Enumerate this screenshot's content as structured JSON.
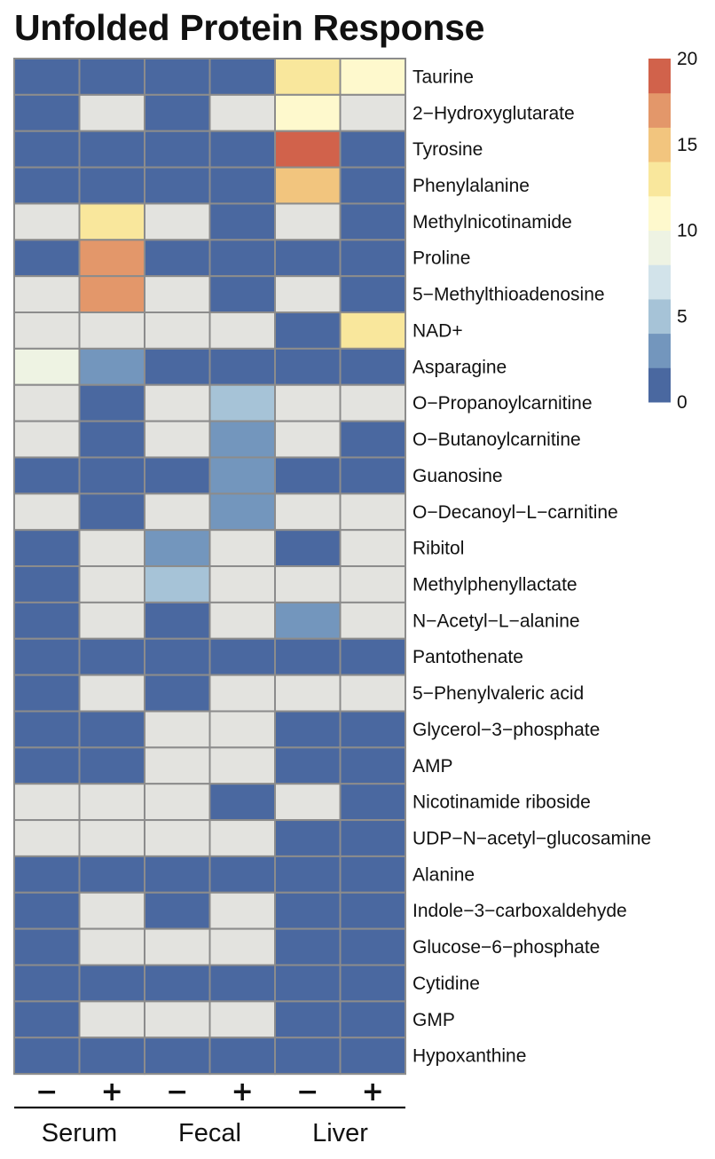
{
  "chart_data": {
    "type": "heatmap",
    "title": "Unfolded Protein Response",
    "rows": [
      "Taurine",
      "2−Hydroxyglutarate",
      "Tyrosine",
      "Phenylalanine",
      "Methylnicotinamide",
      "Proline",
      "5−Methylthioadenosine",
      "NAD+",
      "Asparagine",
      "O−Propanoylcarnitine",
      "O−Butanoylcarnitine",
      "Guanosine",
      "O−Decanoyl−L−carnitine",
      "Ribitol",
      "Methylphenyllactate",
      "N−Acetyl−L−alanine",
      "Pantothenate",
      "5−Phenylvaleric acid",
      "Glycerol−3−phosphate",
      "AMP",
      "Nicotinamide riboside",
      "UDP−N−acetyl−glucosamine",
      "Alanine",
      "Indole−3−carboxaldehyde",
      "Glucose−6−phosphate",
      "Cytidine",
      "GMP",
      "Hypoxanthine"
    ],
    "columns": [
      "−",
      "+",
      "−",
      "+",
      "−",
      "+"
    ],
    "groups": [
      {
        "label": "Serum",
        "columns": [
          0,
          1
        ]
      },
      {
        "label": "Fecal",
        "columns": [
          2,
          3
        ]
      },
      {
        "label": "Liver",
        "columns": [
          4,
          5
        ]
      }
    ],
    "values": [
      [
        1,
        1,
        1,
        1,
        13,
        11
      ],
      [
        1,
        null,
        1,
        null,
        11,
        null
      ],
      [
        1,
        1,
        1,
        1,
        19,
        1
      ],
      [
        1,
        1,
        1,
        1,
        15,
        1
      ],
      [
        null,
        13,
        null,
        1,
        null,
        1
      ],
      [
        1,
        17,
        1,
        1,
        1,
        1
      ],
      [
        null,
        17,
        null,
        1,
        null,
        1
      ],
      [
        null,
        null,
        null,
        null,
        1,
        13
      ],
      [
        9,
        3,
        1,
        1,
        1,
        1
      ],
      [
        null,
        1,
        null,
        5,
        null,
        null
      ],
      [
        null,
        1,
        null,
        3,
        null,
        1
      ],
      [
        1,
        1,
        1,
        3,
        1,
        1
      ],
      [
        null,
        1,
        null,
        3,
        null,
        null
      ],
      [
        1,
        null,
        3,
        null,
        1,
        null
      ],
      [
        1,
        null,
        5,
        null,
        null,
        null
      ],
      [
        1,
        null,
        1,
        null,
        3,
        null
      ],
      [
        1,
        1,
        1,
        1,
        1,
        1
      ],
      [
        1,
        null,
        1,
        null,
        null,
        null
      ],
      [
        1,
        1,
        null,
        null,
        1,
        1
      ],
      [
        1,
        1,
        null,
        null,
        1,
        1
      ],
      [
        null,
        null,
        null,
        1,
        null,
        1
      ],
      [
        null,
        null,
        null,
        null,
        1,
        1
      ],
      [
        1,
        1,
        1,
        1,
        1,
        1
      ],
      [
        1,
        null,
        1,
        null,
        1,
        1
      ],
      [
        1,
        null,
        null,
        null,
        1,
        1
      ],
      [
        1,
        1,
        1,
        1,
        1,
        1
      ],
      [
        1,
        null,
        null,
        null,
        1,
        1
      ],
      [
        1,
        1,
        1,
        1,
        1,
        1
      ]
    ],
    "na_color": "#e3e3df",
    "color_scale": {
      "min": 0,
      "max": 20,
      "bins": [
        "#4a68a0",
        "#7396bd",
        "#a6c3d7",
        "#d2e3ea",
        "#eef3e3",
        "#fef9cd",
        "#f9e79c",
        "#f2c57e",
        "#e3976a",
        "#d1624b"
      ],
      "ticks": [
        0,
        5,
        10,
        15,
        20
      ]
    },
    "legend": "right"
  }
}
